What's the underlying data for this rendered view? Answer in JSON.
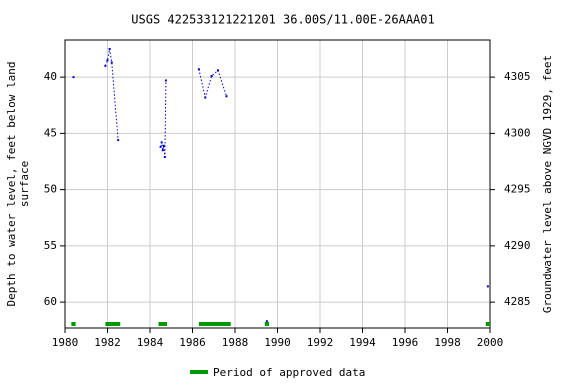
{
  "chart_data": {
    "type": "line",
    "title": "USGS 422533121221201 36.00S/11.00E-26AAA01",
    "y_label": [
      "Depth to water level, feet below land",
      "surface"
    ],
    "y2_label": "Groundwater level above NGVD 1929, feet",
    "x": [
      1980.4,
      null,
      1981.9,
      1982.0,
      1982.1,
      1982.2,
      1982.5,
      null,
      1984.5,
      1984.55,
      1984.6,
      1984.65,
      1984.7,
      1984.75,
      null,
      1986.3,
      1986.6,
      1986.9,
      1987.2,
      1987.6,
      null,
      1989.5,
      null,
      1999.9
    ],
    "series": [
      {
        "name": "Depth to water level",
        "color": "#0000cc",
        "values": [
          40.0,
          null,
          39.0,
          38.5,
          37.5,
          38.7,
          45.6,
          null,
          46.2,
          45.8,
          46.5,
          46.1,
          47.1,
          40.3,
          null,
          39.3,
          41.8,
          39.9,
          39.4,
          41.7,
          null,
          61.7,
          null,
          58.6
        ]
      }
    ],
    "xlim": [
      1980,
      2000
    ],
    "xticks": [
      1980,
      1982,
      1984,
      1986,
      1988,
      1990,
      1992,
      1994,
      1996,
      1998,
      2000
    ],
    "ylim": [
      62.3,
      36.7
    ],
    "yticks": [
      40,
      45,
      50,
      55,
      60
    ],
    "y2lim": [
      4282.7,
      4308.3
    ],
    "y2ticks": [
      4285,
      4290,
      4295,
      4300,
      4305
    ],
    "grid": true,
    "approved": {
      "name": "Period of approved data",
      "color": "#009900",
      "periods": [
        [
          1980.3,
          1980.5
        ],
        [
          1981.9,
          1982.6
        ],
        [
          1984.4,
          1984.8
        ],
        [
          1986.3,
          1987.8
        ],
        [
          1989.4,
          1989.6
        ],
        [
          1999.8,
          2000.0
        ]
      ]
    }
  }
}
